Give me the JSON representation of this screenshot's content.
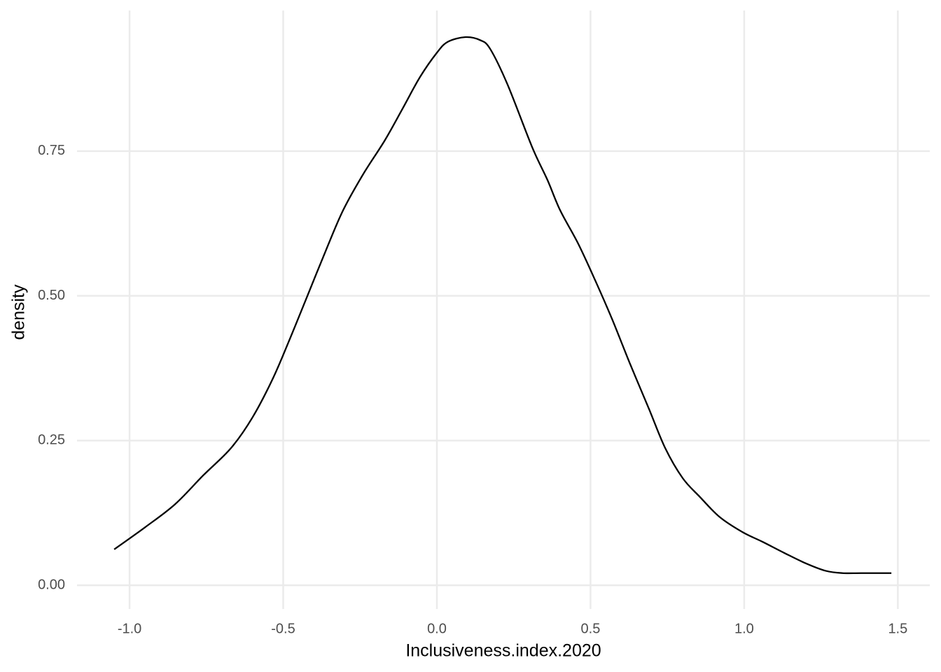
{
  "chart_data": {
    "type": "line",
    "x_label": "Inclusiveness.index.2020",
    "y_label": "density",
    "x": [
      -1.05,
      -0.95,
      -0.852,
      -0.76,
      -0.67,
      -0.6,
      -0.533,
      -0.475,
      -0.419,
      -0.36,
      -0.305,
      -0.24,
      -0.169,
      -0.11,
      -0.055,
      0.0,
      0.036,
      0.093,
      0.14,
      0.173,
      0.23,
      0.31,
      0.36,
      0.401,
      0.46,
      0.515,
      0.57,
      0.629,
      0.69,
      0.743,
      0.8,
      0.857,
      0.92,
      0.994,
      1.06,
      1.13,
      1.2,
      1.265,
      1.32,
      1.38,
      1.479
    ],
    "values": [
      0.062,
      0.1,
      0.14,
      0.19,
      0.237,
      0.29,
      0.358,
      0.43,
      0.503,
      0.58,
      0.648,
      0.71,
      0.769,
      0.825,
      0.878,
      0.92,
      0.939,
      0.947,
      0.942,
      0.927,
      0.865,
      0.757,
      0.7,
      0.648,
      0.59,
      0.527,
      0.46,
      0.382,
      0.305,
      0.237,
      0.185,
      0.152,
      0.118,
      0.092,
      0.075,
      0.056,
      0.038,
      0.025,
      0.021,
      0.021,
      0.021
    ],
    "color": "#000000",
    "xlim": [
      -1.171,
      1.604
    ],
    "ylim": [
      -0.041,
      0.993
    ],
    "xticks": [
      {
        "value": -1.0,
        "label": "-1.0"
      },
      -0.5,
      {
        "value": 0.0,
        "label": "0.0"
      },
      0.5,
      {
        "value": 1.0,
        "label": "1.0"
      },
      1.5
    ],
    "yticks": [
      {
        "value": 0.0,
        "label": "0.00"
      },
      0.25,
      {
        "value": 0.5,
        "label": "0.50"
      },
      0.75
    ],
    "grid": true
  }
}
